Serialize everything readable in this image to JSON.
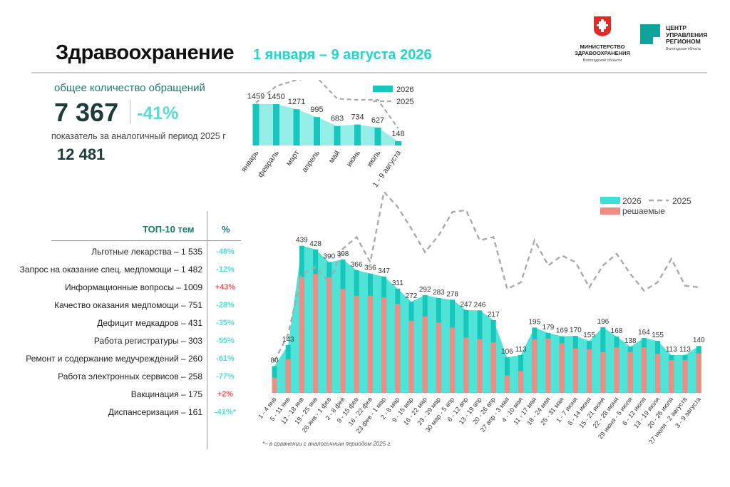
{
  "header": {
    "title": "Здравоохранение",
    "period": "1 января – 9 августа 2026",
    "ministry": {
      "name_line1": "МИНИСТЕРСТВО",
      "name_line2": "ЗДРАВООХРАНЕНИЯ",
      "region": "Вологодской области"
    },
    "center": {
      "line1": "ЦЕНТР",
      "line2": "УПРАВЛЕНИЯ",
      "line3": "РЕГИОНОМ",
      "region": "Вологодская область"
    }
  },
  "colors": {
    "accent": "#1fd6c8",
    "bar2026": "#3de0d4",
    "bar2026_dark": "#18c7bb",
    "resolved": "#f08c84",
    "line2025": "#aaaaaa",
    "negative": "#55ddd3",
    "positive": "#f25a5a"
  },
  "summary": {
    "total_label": "общее количество обращений",
    "total_value": "7 367",
    "change": "-41%",
    "prev_label": "показатель за аналогичный период 2025 г",
    "prev_value": "12 481"
  },
  "top10": {
    "title": "ТОП-10 тем",
    "pct_header": "%",
    "items": [
      {
        "label": "Льготные лекарства – 1 535",
        "pct": "-48%",
        "trend": "down"
      },
      {
        "label": "Запрос на оказание спец. медпомощи – 1 482",
        "pct": "-12%",
        "trend": "down"
      },
      {
        "label": "Информационные вопросы – 1009",
        "pct": "+43%",
        "trend": "up"
      },
      {
        "label": "Качество оказания медпомощи – 751",
        "pct": "-28%",
        "trend": "down"
      },
      {
        "label": "Дефицит медкадров – 431",
        "pct": "-35%",
        "trend": "down"
      },
      {
        "label": "Работа регистратуры – 303",
        "pct": "-55%",
        "trend": "down"
      },
      {
        "label": "Ремонт и содержание медучреждений – 260",
        "pct": "-61%",
        "trend": "down"
      },
      {
        "label": "Работа электронных сервисов – 258",
        "pct": "-77%",
        "trend": "down"
      },
      {
        "label": "Вакцинация – 175",
        "pct": "+2%",
        "trend": "up"
      },
      {
        "label": "Диспансеризация – 161",
        "pct": "-41%*",
        "trend": "down"
      }
    ]
  },
  "footnote": "*– в сравнении с аналогичным периодом 2025 г.",
  "chart_data": [
    {
      "type": "bar",
      "categories": [
        "январь",
        "февраль",
        "март",
        "апрель",
        "май",
        "июнь",
        "июль",
        "1 - 9 августа"
      ],
      "series": [
        {
          "name": "2026",
          "values": [
            1459,
            1450,
            1271,
            995,
            683,
            734,
            627,
            148
          ]
        },
        {
          "name": "2025",
          "values": [
            1500,
            2080,
            2300,
            2380,
            1640,
            1600,
            1600,
            600
          ]
        }
      ],
      "legend": "top-right"
    },
    {
      "type": "bar",
      "categories": [
        "1 - 4 янв",
        "5 - 11 янв",
        "12 - 18 янв",
        "19 - 25 янв",
        "26 янв - 1 фев",
        "2 - 8 фев",
        "9 - 15 фев",
        "16 - 22 фев",
        "23 фев - 1 мар",
        "2 - 8 мар",
        "9 - 15 мар",
        "16 - 22 мар",
        "23 - 29 мар",
        "30 мар - 5 апр",
        "6 - 12 апр",
        "13 - 19 апр",
        "20 - 26 апр",
        "27 апр - 3 мая",
        "4 - 10 мая",
        "11 - 17 мая",
        "18 - 24 мая",
        "25 - 31 мая",
        "1 - 7 июня",
        "8 - 14 июня",
        "15 - 21 июня",
        "22 - 28 июня",
        "29 июня - 5 июля",
        "6 - 12 июля",
        "13 - 19 июля",
        "20 - 26 июля",
        "27 июля - 2 августа",
        "3 - 9 августа"
      ],
      "series": [
        {
          "name": "2026",
          "values": [
            80,
            143,
            439,
            428,
            390,
            398,
            366,
            356,
            347,
            311,
            272,
            292,
            283,
            278,
            247,
            246,
            217,
            106,
            113,
            195,
            179,
            169,
            170,
            155,
            196,
            168,
            138,
            164,
            155,
            113,
            113,
            140
          ]
        },
        {
          "name": "решаемые",
          "values": [
            45,
            100,
            345,
            355,
            345,
            310,
            290,
            290,
            285,
            265,
            215,
            228,
            210,
            195,
            165,
            160,
            150,
            52,
            65,
            160,
            162,
            148,
            133,
            130,
            122,
            136,
            122,
            136,
            116,
            98,
            98,
            118
          ]
        },
        {
          "name": "2025",
          "values": [
            95,
            175,
            355,
            375,
            330,
            430,
            465,
            390,
            600,
            555,
            490,
            420,
            470,
            540,
            545,
            455,
            465,
            310,
            330,
            455,
            380,
            410,
            390,
            315,
            380,
            415,
            355,
            305,
            330,
            400,
            320,
            315
          ]
        }
      ],
      "legend": "top-right"
    }
  ]
}
